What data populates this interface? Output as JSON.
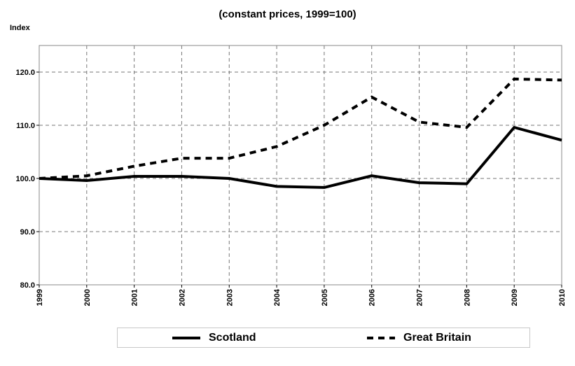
{
  "chart_data": {
    "type": "line",
    "title": "(constant prices, 1999=100)",
    "ylabel": "Index",
    "xlabel": "",
    "x": [
      "1999",
      "2000",
      "2001",
      "2002",
      "2003",
      "2004",
      "2005",
      "2006",
      "2007",
      "2008",
      "2009",
      "2010"
    ],
    "ylim": [
      80,
      125
    ],
    "yticks": [
      80,
      90,
      100,
      110,
      120
    ],
    "ytick_labels": [
      "80.0",
      "90.0",
      "100.0",
      "110.0",
      "120.0"
    ],
    "grid": true,
    "legend_position": "bottom",
    "series": [
      {
        "name": "Scotland",
        "style": "solid",
        "color": "#000000",
        "values": [
          100.0,
          99.6,
          100.4,
          100.4,
          100.0,
          98.5,
          98.3,
          100.5,
          99.2,
          99.0,
          109.6,
          107.2
        ]
      },
      {
        "name": "Great Britain",
        "style": "dashed",
        "color": "#000000",
        "values": [
          100.0,
          100.5,
          102.3,
          103.8,
          103.8,
          106.0,
          110.0,
          115.3,
          110.6,
          109.6,
          118.7,
          118.5
        ]
      }
    ]
  }
}
